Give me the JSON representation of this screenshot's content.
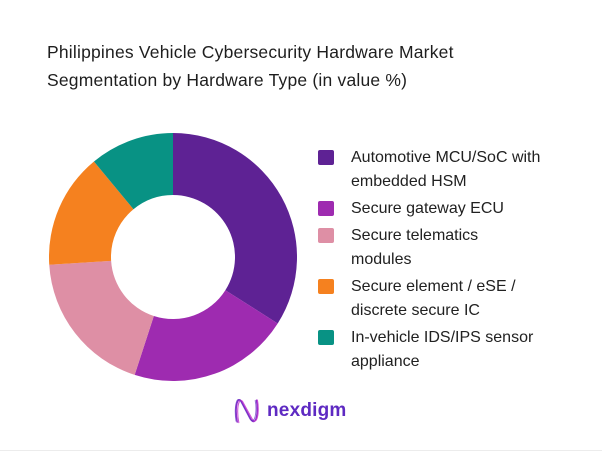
{
  "title": {
    "text": "Philippines Vehicle Cybersecurity Hardware Market\nSegmentation by Hardware Type (in value %)"
  },
  "logo": {
    "wordmark": "nexdigm",
    "icon": "nexdigm-n-wave-icon",
    "wordmark_color": "#5e2ac2"
  },
  "colors": {
    "background": "#ffffff",
    "title_text": "#1e1e1e",
    "legend_text": "#212121"
  },
  "chart_data": {
    "type": "pie",
    "subtype": "donut",
    "title": "Philippines Vehicle Cybersecurity Hardware Market Segmentation by Hardware Type (in value %)",
    "units": "percent of value",
    "values_labeled_on_chart": false,
    "values_are_estimates_from_angles": true,
    "start_angle_deg": 0,
    "direction": "clockwise",
    "inner_radius_ratio": 0.5,
    "legend_position": "right",
    "segments": [
      {
        "label": "Automotive MCU/SoC with embedded HSM",
        "label_lines": "Automotive MCU/SoC with\nembedded HSM",
        "value": 34,
        "color": "#5e2294"
      },
      {
        "label": "Secure gateway ECU",
        "label_lines": "Secure gateway ECU",
        "value": 21,
        "color": "#9e2bb0"
      },
      {
        "label": "Secure telematics modules",
        "label_lines": "Secure telematics\nmodules",
        "value": 19,
        "color": "#de8fa5"
      },
      {
        "label": "Secure element / eSE / discrete secure IC",
        "label_lines": " Secure element / eSE /\ndiscrete secure IC",
        "value": 15,
        "color": "#f5811f"
      },
      {
        "label": "In-vehicle IDS/IPS sensor appliance",
        "label_lines": "In-vehicle IDS/IPS sensor\nappliance",
        "value": 11,
        "color": "#089284"
      }
    ]
  }
}
